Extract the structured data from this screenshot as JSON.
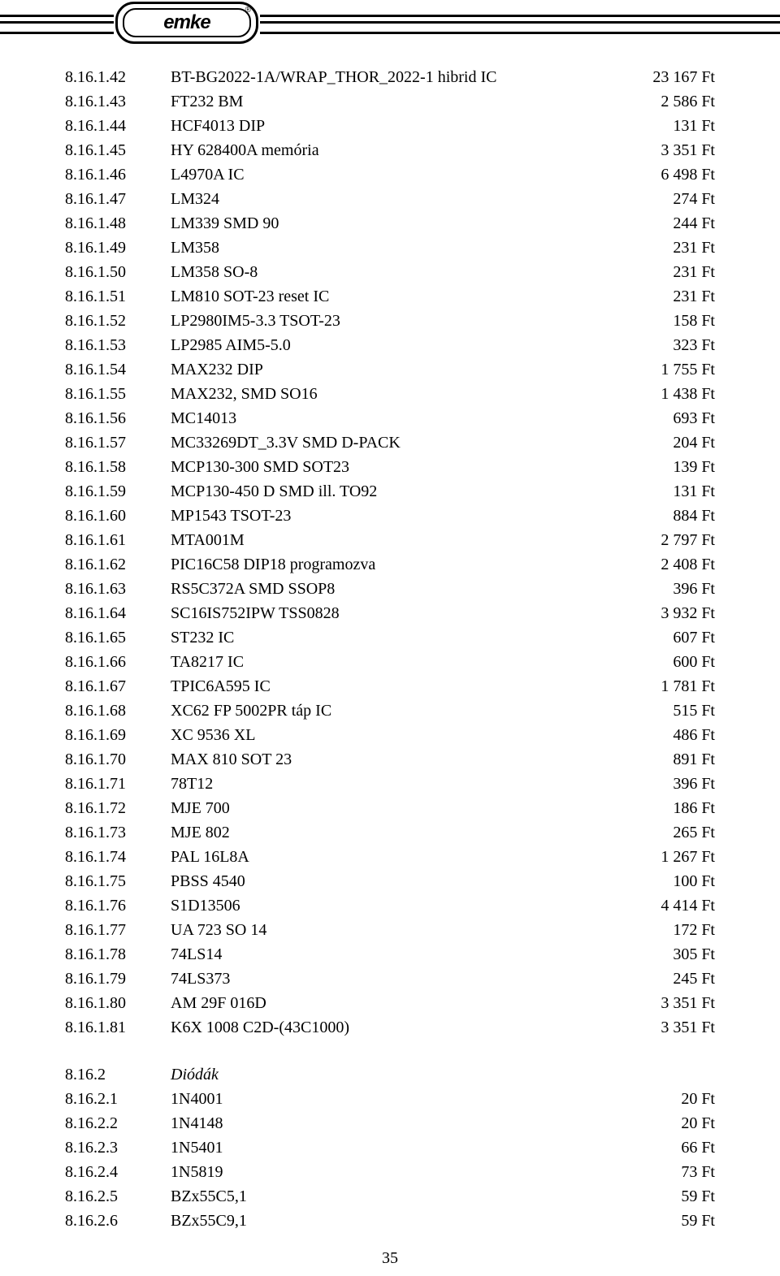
{
  "logo_text": "emke",
  "page_number": "35",
  "items": [
    {
      "code": "8.16.1.42",
      "desc": "BT-BG2022-1A/WRAP_THOR_2022-1 hibrid IC",
      "price": "23 167 Ft"
    },
    {
      "code": "8.16.1.43",
      "desc": "FT232 BM",
      "price": "2 586 Ft"
    },
    {
      "code": "8.16.1.44",
      "desc": "HCF4013 DIP",
      "price": "131 Ft"
    },
    {
      "code": "8.16.1.45",
      "desc": "HY 628400A memória",
      "price": "3 351 Ft"
    },
    {
      "code": "8.16.1.46",
      "desc": "L4970A IC",
      "price": "6 498 Ft"
    },
    {
      "code": "8.16.1.47",
      "desc": "LM324",
      "price": "274 Ft"
    },
    {
      "code": "8.16.1.48",
      "desc": "LM339 SMD 90",
      "price": "244 Ft"
    },
    {
      "code": "8.16.1.49",
      "desc": "LM358",
      "price": "231 Ft"
    },
    {
      "code": "8.16.1.50",
      "desc": "LM358 SO-8",
      "price": "231 Ft"
    },
    {
      "code": "8.16.1.51",
      "desc": "LM810 SOT-23 reset IC",
      "price": "231 Ft"
    },
    {
      "code": "8.16.1.52",
      "desc": "LP2980IM5-3.3 TSOT-23",
      "price": "158 Ft"
    },
    {
      "code": "8.16.1.53",
      "desc": "LP2985 AIM5-5.0",
      "price": "323 Ft"
    },
    {
      "code": "8.16.1.54",
      "desc": "MAX232 DIP",
      "price": "1 755 Ft"
    },
    {
      "code": "8.16.1.55",
      "desc": "MAX232, SMD SO16",
      "price": "1 438 Ft"
    },
    {
      "code": "8.16.1.56",
      "desc": "MC14013",
      "price": "693 Ft"
    },
    {
      "code": "8.16.1.57",
      "desc": "MC33269DT_3.3V SMD D-PACK",
      "price": "204 Ft"
    },
    {
      "code": "8.16.1.58",
      "desc": "MCP130-300 SMD SOT23",
      "price": "139 Ft"
    },
    {
      "code": "8.16.1.59",
      "desc": "MCP130-450 D SMD ill. TO92",
      "price": "131 Ft"
    },
    {
      "code": "8.16.1.60",
      "desc": "MP1543 TSOT-23",
      "price": "884 Ft"
    },
    {
      "code": "8.16.1.61",
      "desc": "MTA001M",
      "price": "2 797 Ft"
    },
    {
      "code": "8.16.1.62",
      "desc": "PIC16C58 DIP18 programozva",
      "price": "2 408 Ft"
    },
    {
      "code": "8.16.1.63",
      "desc": "RS5C372A SMD SSOP8",
      "price": "396 Ft"
    },
    {
      "code": "8.16.1.64",
      "desc": "SC16IS752IPW TSS0828",
      "price": "3 932 Ft"
    },
    {
      "code": "8.16.1.65",
      "desc": "ST232 IC",
      "price": "607 Ft"
    },
    {
      "code": "8.16.1.66",
      "desc": "TA8217 IC",
      "price": "600 Ft"
    },
    {
      "code": "8.16.1.67",
      "desc": "TPIC6A595 IC",
      "price": "1 781 Ft"
    },
    {
      "code": "8.16.1.68",
      "desc": "XC62 FP 5002PR táp IC",
      "price": "515 Ft"
    },
    {
      "code": "8.16.1.69",
      "desc": "XC 9536 XL",
      "price": "486 Ft"
    },
    {
      "code": "8.16.1.70",
      "desc": "MAX 810 SOT 23",
      "price": "891 Ft"
    },
    {
      "code": "8.16.1.71",
      "desc": "78T12",
      "price": "396 Ft"
    },
    {
      "code": "8.16.1.72",
      "desc": "MJE 700",
      "price": "186 Ft"
    },
    {
      "code": "8.16.1.73",
      "desc": "MJE 802",
      "price": "265 Ft"
    },
    {
      "code": "8.16.1.74",
      "desc": "PAL 16L8A",
      "price": "1 267 Ft"
    },
    {
      "code": "8.16.1.75",
      "desc": "PBSS 4540",
      "price": "100 Ft"
    },
    {
      "code": "8.16.1.76",
      "desc": "S1D13506",
      "price": "4 414 Ft"
    },
    {
      "code": "8.16.1.77",
      "desc": "UA 723 SO 14",
      "price": "172 Ft"
    },
    {
      "code": "8.16.1.78",
      "desc": "74LS14",
      "price": "305 Ft"
    },
    {
      "code": "8.16.1.79",
      "desc": "74LS373",
      "price": "245 Ft"
    },
    {
      "code": "8.16.1.80",
      "desc": "AM 29F 016D",
      "price": "3 351 Ft"
    },
    {
      "code": "8.16.1.81",
      "desc": "K6X 1008 C2D-(43C1000)",
      "price": "3 351 Ft"
    }
  ],
  "section2": {
    "code": "8.16.2",
    "title": "Diódák"
  },
  "items2": [
    {
      "code": "8.16.2.1",
      "desc": "1N4001",
      "price": "20 Ft"
    },
    {
      "code": "8.16.2.2",
      "desc": "1N4148",
      "price": "20 Ft"
    },
    {
      "code": "8.16.2.3",
      "desc": "1N5401",
      "price": "66 Ft"
    },
    {
      "code": "8.16.2.4",
      "desc": "1N5819",
      "price": "73 Ft"
    },
    {
      "code": "8.16.2.5",
      "desc": "BZx55C5,1",
      "price": "59 Ft"
    },
    {
      "code": "8.16.2.6",
      "desc": "BZx55C9,1",
      "price": "59 Ft"
    }
  ]
}
